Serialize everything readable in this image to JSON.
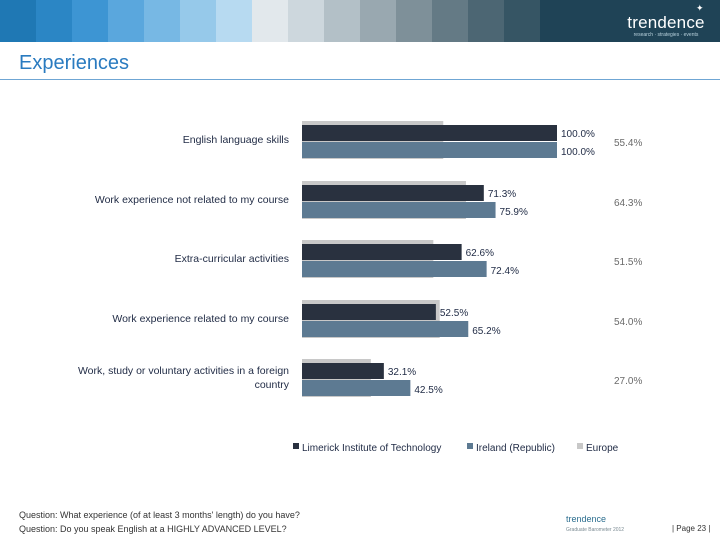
{
  "header": {
    "stripe_colors": [
      "#1f78b4",
      "#2b86c5",
      "#3d95d3",
      "#5aa7dd",
      "#77b8e4",
      "#96c9ea",
      "#b7daf1",
      "#e2e8ec",
      "#cdd7dd",
      "#b3c0c7",
      "#99a8b0",
      "#7e9099",
      "#647a85",
      "#4c6673",
      "#365564",
      "#1f4356",
      "#1f4356"
    ],
    "logo_text": "trendence",
    "logo_tagline": "research · strategies · events"
  },
  "page_title": "Experiences",
  "chart_data": {
    "type": "bar",
    "orientation": "horizontal",
    "categories": [
      "English language skills",
      "Work experience not related to my course",
      "Extra-curricular activities",
      "Work experience related to my course",
      "Work, study or voluntary activities in a foreign country"
    ],
    "series": [
      {
        "name": "Limerick Institute of Technology",
        "color": "#29313f",
        "values": [
          100.0,
          71.3,
          62.6,
          52.5,
          32.1
        ],
        "value_labels": [
          "100.0%",
          "71.3%",
          "62.6%",
          "52.5%",
          "32.1%"
        ]
      },
      {
        "name": "Ireland (Republic)",
        "color": "#5d7a92",
        "values": [
          100.0,
          75.9,
          72.4,
          65.2,
          42.5
        ],
        "value_labels": [
          "100.0%",
          "75.9%",
          "72.4%",
          "65.2%",
          "42.5%"
        ]
      },
      {
        "name": "Europe",
        "color": "#c8c8c8",
        "values": [
          55.4,
          64.3,
          51.5,
          54.0,
          27.0
        ],
        "value_labels": [
          "55.4%",
          "64.3%",
          "51.5%",
          "54.0%",
          "27.0%"
        ]
      }
    ],
    "xlim": [
      0,
      100
    ],
    "grid": false,
    "legend_position": "bottom"
  },
  "footer": {
    "question_1": "Question: What experience (of at least 3 months' length) do you have?",
    "question_2": "Question: Do you speak English at a HIGHLY ADVANCED LEVEL?",
    "logo_text": "trendence",
    "logo_sub": "Graduate Barometer 2012",
    "page_number": "| Page 23 |"
  }
}
